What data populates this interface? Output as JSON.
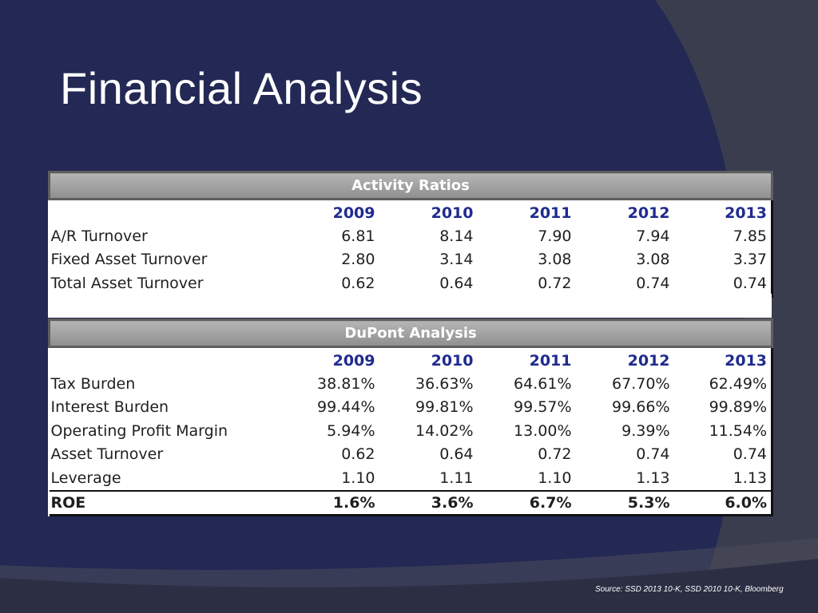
{
  "slide": {
    "title": "Financial Analysis",
    "source": "Source: SSD 2013 10-K, SSD 2010 10-K, Bloomberg"
  },
  "colors": {
    "background_navy": "#232854",
    "background_gray": "#3a3d4e",
    "year_header": "#1f2b8f",
    "section_header": "#a3a3a3"
  },
  "activity": {
    "header": "Activity Ratios",
    "years": [
      "2009",
      "2010",
      "2011",
      "2012",
      "2013"
    ],
    "rows": [
      {
        "label": "A/R Turnover",
        "values": [
          "6.81",
          "8.14",
          "7.90",
          "7.94",
          "7.85"
        ]
      },
      {
        "label": "Fixed Asset Turnover",
        "values": [
          "2.80",
          "3.14",
          "3.08",
          "3.08",
          "3.37"
        ]
      },
      {
        "label": "Total Asset Turnover",
        "values": [
          "0.62",
          "0.64",
          "0.72",
          "0.74",
          "0.74"
        ]
      }
    ]
  },
  "dupont": {
    "header": "DuPont Analysis",
    "years": [
      "2009",
      "2010",
      "2011",
      "2012",
      "2013"
    ],
    "rows": [
      {
        "label": "Tax Burden",
        "values": [
          "38.81%",
          "36.63%",
          "64.61%",
          "67.70%",
          "62.49%"
        ]
      },
      {
        "label": "Interest Burden",
        "values": [
          "99.44%",
          "99.81%",
          "99.57%",
          "99.66%",
          "99.89%"
        ]
      },
      {
        "label": "Operating Profit Margin",
        "values": [
          "5.94%",
          "14.02%",
          "13.00%",
          "9.39%",
          "11.54%"
        ]
      },
      {
        "label": "Asset Turnover",
        "values": [
          "0.62",
          "0.64",
          "0.72",
          "0.74",
          "0.74"
        ]
      },
      {
        "label": "Leverage",
        "values": [
          "1.10",
          "1.11",
          "1.10",
          "1.13",
          "1.13"
        ]
      },
      {
        "label": "ROE",
        "values": [
          "1.6%",
          "3.6%",
          "6.7%",
          "5.3%",
          "6.0%"
        ]
      }
    ]
  }
}
